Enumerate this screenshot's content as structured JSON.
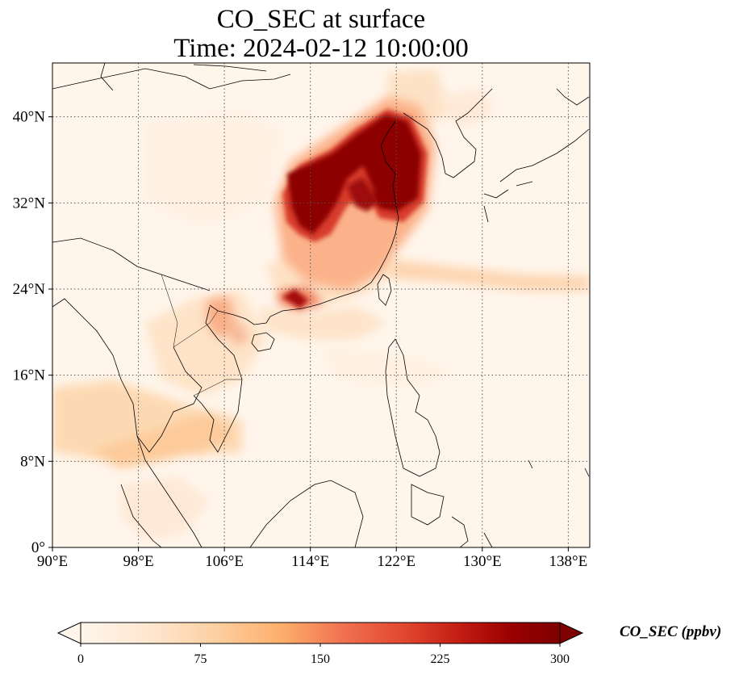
{
  "title": {
    "line1": "CO_SEC at surface",
    "line2": "Time: 2024-02-12 10:00:00"
  },
  "map": {
    "lon_range": [
      90,
      140
    ],
    "lat_range": [
      0,
      45
    ],
    "lon_ticks": [
      {
        "value": 90,
        "label": "90°E"
      },
      {
        "value": 98,
        "label": "98°E"
      },
      {
        "value": 106,
        "label": "106°E"
      },
      {
        "value": 114,
        "label": "114°E"
      },
      {
        "value": 122,
        "label": "122°E"
      },
      {
        "value": 130,
        "label": "130°E"
      },
      {
        "value": 138,
        "label": "138°E"
      }
    ],
    "lat_ticks": [
      {
        "value": 0,
        "label": "0°"
      },
      {
        "value": 8,
        "label": "8°N"
      },
      {
        "value": 16,
        "label": "16°N"
      },
      {
        "value": 24,
        "label": "24°N"
      },
      {
        "value": 32,
        "label": "32°N"
      },
      {
        "value": 40,
        "label": "40°N"
      }
    ],
    "gridlines": true,
    "background_color": "#fff5eb",
    "colormap": "OrRd"
  },
  "colorbar": {
    "label": "CO_SEC (ppbv)",
    "range": [
      0,
      300
    ],
    "ticks": [
      {
        "value": 0,
        "label": "0"
      },
      {
        "value": 75,
        "label": "75"
      },
      {
        "value": 150,
        "label": "150"
      },
      {
        "value": 225,
        "label": "225"
      },
      {
        "value": 300,
        "label": "300"
      }
    ],
    "extend": "both",
    "colors": [
      "#fff5eb",
      "#fee6ce",
      "#fdd0a2",
      "#fdae6b",
      "#fd8d3c",
      "#f16913",
      "#d94801",
      "#a63603",
      "#7f2704"
    ]
  }
}
